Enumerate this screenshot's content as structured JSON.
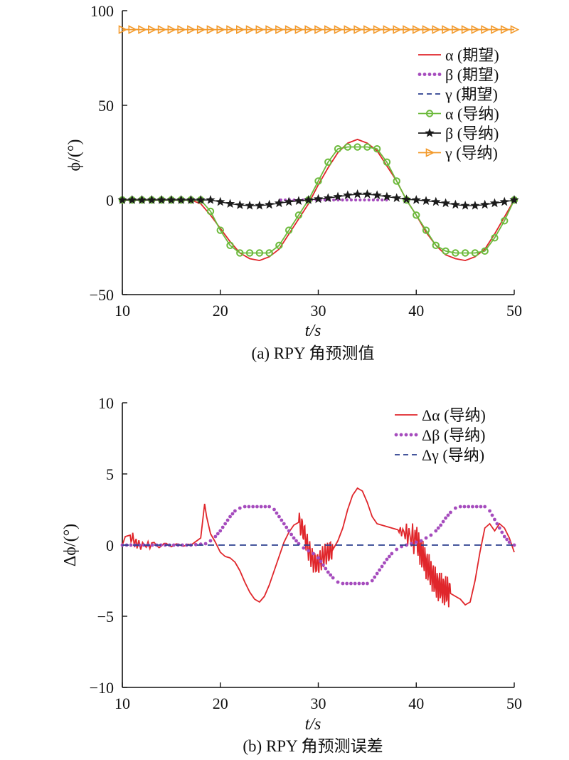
{
  "colors": {
    "alpha_desired": "#e0262b",
    "beta_desired": "#a54bbd",
    "gamma_desired": "#2b3f8f",
    "alpha_nav": "#6cba3c",
    "beta_nav": "#1a1a1a",
    "gamma_nav": "#f39a2b"
  },
  "chart_data": [
    {
      "type": "line",
      "caption": "(a) RPY 角预测值",
      "xlabel": "t/s",
      "ylabel": "ϕ/(°)",
      "xlim": [
        10,
        50
      ],
      "ylim": [
        -50,
        100
      ],
      "xticks": [
        10,
        20,
        30,
        40,
        50
      ],
      "yticks": [
        -50,
        0,
        50,
        100
      ],
      "ytick_labels": [
        "−50",
        "0",
        "50",
        "100"
      ],
      "legend_position": "top-right",
      "series": [
        {
          "name": "α (期望)",
          "style": "solid",
          "color": "#e0262b",
          "x": [
            10,
            12,
            14,
            16,
            17,
            18,
            19,
            20,
            21,
            22,
            23,
            24,
            25,
            26,
            27,
            28,
            29,
            30,
            31,
            32,
            33,
            34,
            35,
            36,
            37,
            38,
            39,
            40,
            41,
            42,
            43,
            44,
            45,
            46,
            47,
            48,
            49,
            50
          ],
          "y": [
            0,
            0,
            0,
            0,
            0,
            -2,
            -8,
            -15,
            -22,
            -28,
            -31,
            -32,
            -30,
            -26,
            -18,
            -10,
            -2,
            8,
            17,
            25,
            30,
            32,
            30,
            26,
            18,
            10,
            0,
            -8,
            -17,
            -24,
            -29,
            -31,
            -32,
            -30,
            -26,
            -18,
            -9,
            0
          ]
        },
        {
          "name": "β (期望)",
          "style": "dotted",
          "color": "#a54bbd",
          "x": [
            10,
            50
          ],
          "y": [
            0,
            0
          ]
        },
        {
          "name": "γ (期望)",
          "style": "dashed",
          "color": "#2b3f8f",
          "x": [
            10,
            50
          ],
          "y": [
            90,
            90
          ]
        },
        {
          "name": "α (导纳)",
          "style": "line-circle",
          "color": "#6cba3c",
          "x": [
            10,
            11,
            12,
            13,
            14,
            15,
            16,
            17,
            18,
            19,
            20,
            21,
            22,
            23,
            24,
            25,
            26,
            27,
            28,
            29,
            30,
            31,
            32,
            33,
            34,
            35,
            36,
            37,
            38,
            39,
            40,
            41,
            42,
            43,
            44,
            45,
            46,
            47,
            48,
            49,
            50
          ],
          "y": [
            0,
            0,
            0,
            0,
            0,
            0,
            0,
            0,
            0,
            -6,
            -16,
            -24,
            -28,
            -28,
            -28,
            -28,
            -24,
            -16,
            -8,
            0,
            10,
            20,
            27,
            28,
            28,
            28,
            27,
            20,
            10,
            0,
            -8,
            -16,
            -24,
            -27,
            -28,
            -28,
            -28,
            -27,
            -20,
            -11,
            0
          ]
        },
        {
          "name": "β (导纳)",
          "style": "line-star",
          "color": "#1a1a1a",
          "x": [
            10,
            11,
            12,
            13,
            14,
            15,
            16,
            17,
            18,
            19,
            20,
            21,
            22,
            23,
            24,
            25,
            26,
            27,
            28,
            29,
            30,
            31,
            32,
            33,
            34,
            35,
            36,
            37,
            38,
            39,
            40,
            41,
            42,
            43,
            44,
            45,
            46,
            47,
            48,
            49,
            50
          ],
          "y": [
            0,
            0,
            0,
            0,
            0,
            0,
            0,
            0,
            0,
            0,
            -1,
            -2,
            -2.7,
            -3,
            -3,
            -2.5,
            -1.7,
            -1,
            -0.5,
            0,
            0.5,
            1,
            1.7,
            2.5,
            3,
            3,
            2.5,
            1.7,
            1,
            0.3,
            0,
            -0.5,
            -1,
            -1.7,
            -2.5,
            -3,
            -3,
            -2.5,
            -1.7,
            -1,
            0
          ]
        },
        {
          "name": "γ (导纳)",
          "style": "line-triangle",
          "color": "#f39a2b",
          "x": [
            10,
            11,
            12,
            13,
            14,
            15,
            16,
            17,
            18,
            19,
            20,
            21,
            22,
            23,
            24,
            25,
            26,
            27,
            28,
            29,
            30,
            31,
            32,
            33,
            34,
            35,
            36,
            37,
            38,
            39,
            40,
            41,
            42,
            43,
            44,
            45,
            46,
            47,
            48,
            49,
            50
          ],
          "y": [
            90,
            90,
            90,
            90,
            90,
            90,
            90,
            90,
            90,
            90,
            90,
            90,
            90,
            90,
            90,
            90,
            90,
            90,
            90,
            90,
            90,
            90,
            90,
            90,
            90,
            90,
            90,
            90,
            90,
            90,
            90,
            90,
            90,
            90,
            90,
            90,
            90,
            90,
            90,
            90,
            90
          ]
        }
      ]
    },
    {
      "type": "line",
      "caption": "(b) RPY 角预测误差",
      "xlabel": "t/s",
      "ylabel": "Δϕ/(°)",
      "xlim": [
        10,
        50
      ],
      "ylim": [
        -10,
        10
      ],
      "xticks": [
        10,
        20,
        30,
        40,
        50
      ],
      "yticks": [
        -10,
        -5,
        0,
        5,
        10
      ],
      "ytick_labels": [
        "−10",
        "−5",
        "0",
        "5",
        "10"
      ],
      "legend_position": "top-right",
      "series": [
        {
          "name": "Δα (导纳)",
          "style": "solid",
          "color": "#e0262b",
          "x": [
            10,
            10.3,
            10.8,
            11.5,
            13,
            15,
            17,
            18,
            18.4,
            18.6,
            19,
            19.5,
            20,
            20.5,
            21,
            21.5,
            22,
            22.5,
            23,
            23.5,
            24,
            24.5,
            25,
            25.5,
            26,
            26.5,
            27,
            27.5,
            28,
            28.5,
            29,
            29.5,
            30,
            30.5,
            31,
            31.5,
            32,
            32.5,
            33,
            33.5,
            34,
            34.5,
            35,
            35.5,
            36,
            37,
            38,
            39,
            40,
            40.5,
            41,
            41.5,
            42,
            42.5,
            43,
            43.5,
            44,
            44.5,
            45,
            45.5,
            46,
            46.5,
            47,
            47.5,
            48,
            48.5,
            49,
            49.5,
            50
          ],
          "y": [
            0,
            0.6,
            0.7,
            0,
            0,
            0,
            0,
            0.5,
            2.9,
            2,
            0.8,
            0.2,
            -0.5,
            -0.8,
            -0.9,
            -1.2,
            -1.8,
            -2.6,
            -3.3,
            -3.8,
            -4,
            -3.6,
            -2.8,
            -1.8,
            -0.8,
            0.2,
            0.9,
            1.4,
            1.6,
            1,
            -0.3,
            -1.2,
            -1.3,
            -0.8,
            -0.5,
            -0.3,
            0.3,
            1.2,
            2.5,
            3.5,
            4,
            3.8,
            3,
            2,
            1.5,
            1.3,
            1.1,
            0.8,
            0.3,
            -0.5,
            -1.3,
            -2,
            -2.7,
            -3,
            -3.2,
            -3.4,
            -3.6,
            -3.8,
            -4.2,
            -4,
            -2.5,
            -0.5,
            1.2,
            1.5,
            1,
            1.5,
            1.2,
            0.5,
            -0.5
          ]
        },
        {
          "name": "Δβ (导纳)",
          "style": "dotted",
          "color": "#a54bbd",
          "x": [
            10,
            17,
            18.5,
            19,
            19.5,
            20,
            20.5,
            21,
            21.5,
            22,
            22.5,
            25,
            25.5,
            26,
            26.5,
            27,
            27.5,
            28,
            28.5,
            29,
            29.5,
            30,
            30.5,
            31,
            31.5,
            32,
            32.5,
            35,
            35.5,
            36,
            36.5,
            37,
            37.5,
            38,
            38.5,
            39,
            39.5,
            40,
            40.5,
            41,
            41.5,
            42,
            42.5,
            43,
            43.5,
            44,
            44.5,
            47,
            47.5,
            48,
            48.5,
            49,
            49.5,
            50
          ],
          "y": [
            0,
            0,
            0.1,
            0.3,
            0.6,
            1,
            1.5,
            2,
            2.4,
            2.6,
            2.7,
            2.7,
            2.5,
            2,
            1.5,
            1,
            0.5,
            0.1,
            -0.2,
            -0.4,
            -0.6,
            -0.9,
            -1.4,
            -1.9,
            -2.3,
            -2.6,
            -2.7,
            -2.7,
            -2.5,
            -2,
            -1.5,
            -1,
            -0.6,
            -0.3,
            -0.1,
            0,
            0.1,
            0.2,
            0.3,
            0.5,
            0.7,
            1,
            1.4,
            1.9,
            2.3,
            2.6,
            2.7,
            2.7,
            2.4,
            1.8,
            1.2,
            0.6,
            0.2,
            0
          ]
        },
        {
          "name": "Δγ (导纳)",
          "style": "dashed",
          "color": "#2b3f8f",
          "x": [
            10,
            50
          ],
          "y": [
            0,
            0
          ]
        }
      ]
    }
  ]
}
